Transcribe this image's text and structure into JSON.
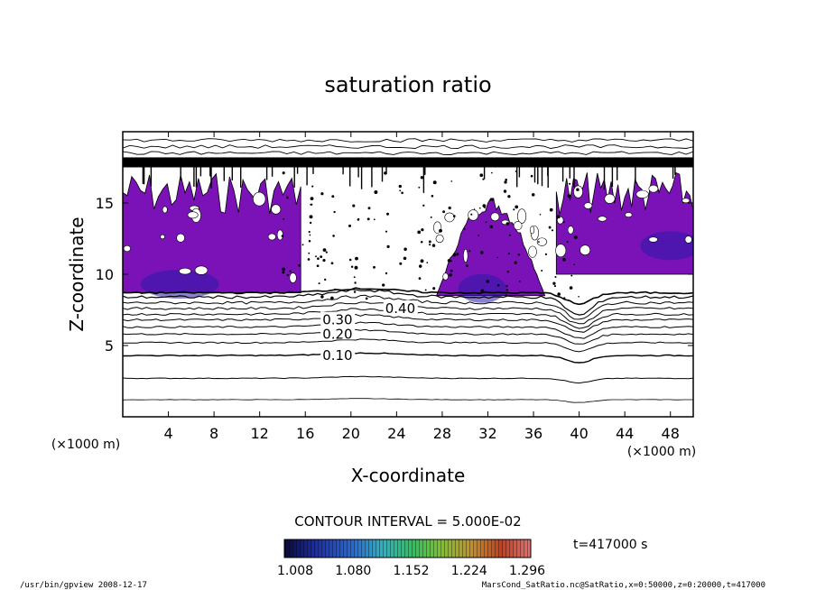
{
  "chart_data": {
    "type": "heatmap",
    "title": "saturation ratio",
    "xlabel": "X-coordinate",
    "ylabel": "Z-coordinate",
    "x_unit": "(×1000 m)",
    "y_unit": "(×1000 m)",
    "xlim": [
      0,
      50
    ],
    "ylim": [
      0,
      20
    ],
    "x_ticks": [
      4,
      8,
      12,
      16,
      20,
      24,
      28,
      32,
      36,
      40,
      44,
      48
    ],
    "y_ticks": [
      5,
      10,
      15
    ],
    "contour_interval_text": "CONTOUR INTERVAL = 5.000E-02",
    "time_text": "t=417000 s",
    "colorbar_labels": [
      "1.008",
      "1.080",
      "1.152",
      "1.224",
      "1.296"
    ],
    "contour_labels": [
      {
        "text": "0.10",
        "x": 17.5,
        "z": 4.3
      },
      {
        "text": "0.20",
        "x": 17.5,
        "z": 5.8
      },
      {
        "text": "0.30",
        "x": 17.5,
        "z": 6.8
      },
      {
        "text": "0.40",
        "x": 23,
        "z": 7.6
      }
    ],
    "contour_levels": [
      {
        "z": 1.2,
        "amp": 0.05,
        "w": 0.8
      },
      {
        "z": 2.7,
        "amp": 0.08,
        "w": 1.0
      },
      {
        "z": 4.3,
        "amp": 0.12,
        "w": 1.4
      },
      {
        "z": 5.2,
        "amp": 0.15,
        "w": 1.0
      },
      {
        "z": 5.8,
        "amp": 0.18,
        "w": 1.0
      },
      {
        "z": 6.3,
        "amp": 0.2,
        "w": 1.0
      },
      {
        "z": 6.8,
        "amp": 0.22,
        "w": 1.0
      },
      {
        "z": 7.2,
        "amp": 0.25,
        "w": 1.0
      },
      {
        "z": 7.6,
        "amp": 0.28,
        "w": 1.0
      },
      {
        "z": 8.0,
        "amp": 0.3,
        "w": 1.0
      },
      {
        "z": 8.4,
        "amp": 0.32,
        "w": 1.2
      },
      {
        "z": 8.7,
        "amp": 0.2,
        "w": 1.6
      }
    ],
    "purple_regions": [
      {
        "x0": 0,
        "x1": 15.6,
        "z0": 8.7,
        "z1": 17.2,
        "peak_x": 5,
        "peak_z": 9.3
      },
      {
        "x0": 27.5,
        "x1": 37,
        "z0": 8.5,
        "z1": 15.5,
        "peak_x": 31.5,
        "peak_z": 9.0
      },
      {
        "x0": 38,
        "x1": 50,
        "z0": 10,
        "z1": 17.2,
        "peak_x": 48,
        "peak_z": 12
      }
    ],
    "top_band_z": [
      17.5,
      18.2
    ],
    "colors": {
      "purple": "#7a12b8",
      "blue_core": "#2a1aa8",
      "contour": "#000000"
    }
  },
  "footer": {
    "left": "/usr/bin/gpview   2008-12-17",
    "right": "MarsCond_SatRatio.nc@SatRatio,x=0:50000,z=0:20000,t=417000"
  }
}
